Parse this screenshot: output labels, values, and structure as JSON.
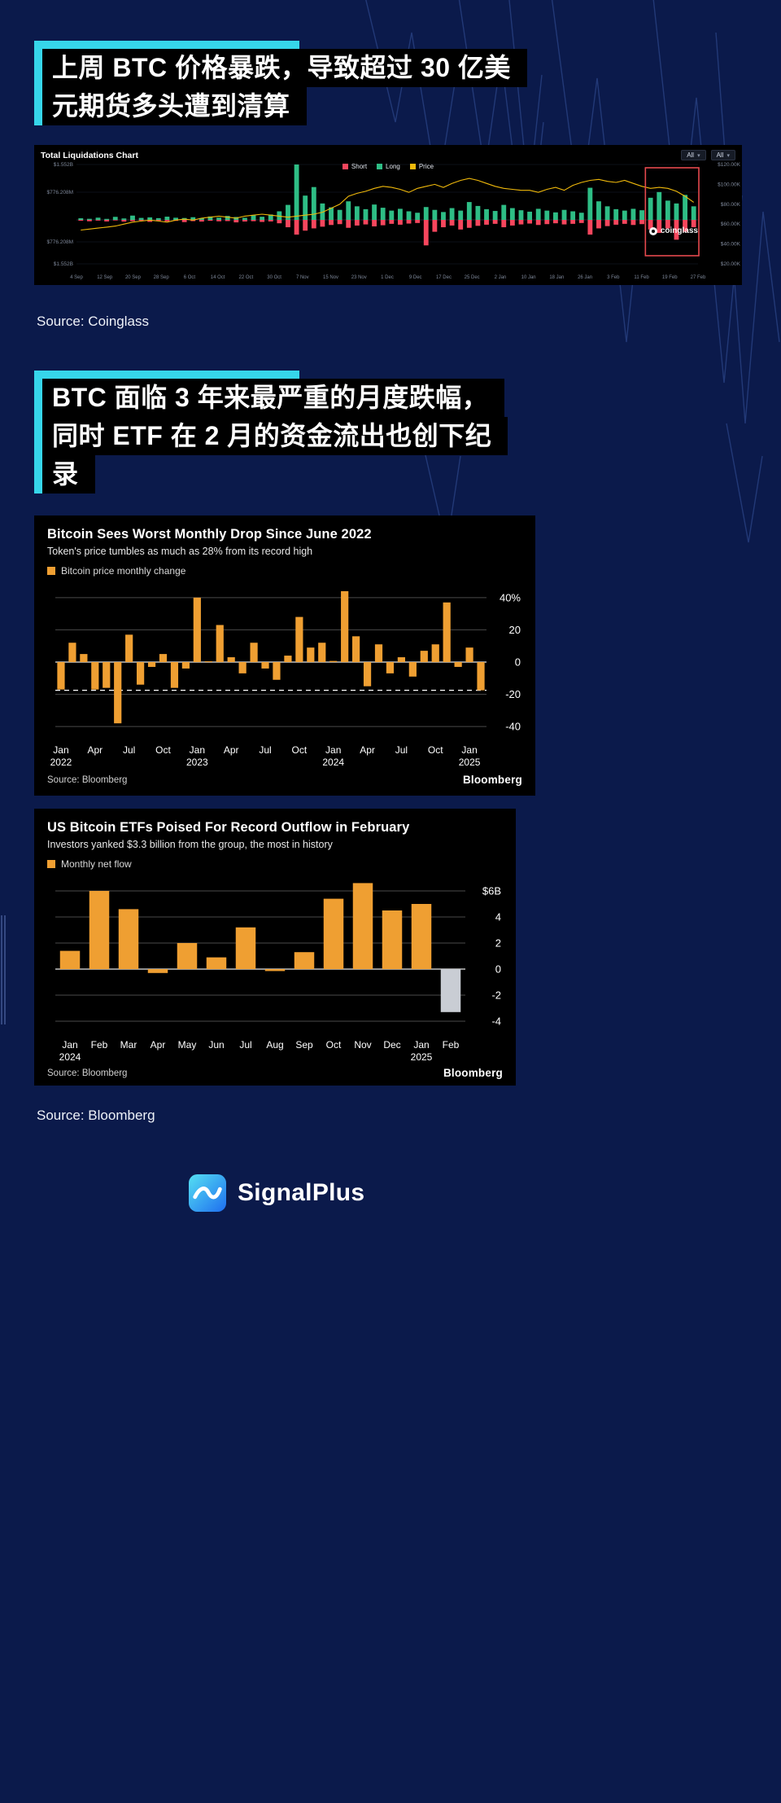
{
  "page": {
    "bg": "#0b1a4b",
    "accent": "#36d6ea",
    "pattern_color": "#4a6cc0"
  },
  "heading1": {
    "lines": [
      "上周 BTC 价格暴跌，导致超过 30 亿美",
      "元期货多头遭到清算"
    ]
  },
  "source_coinglass": "Source: Coinglass",
  "heading2": {
    "lines": [
      "BTC 面临 3 年来最严重的月度跌幅，",
      "同时 ETF 在 2 月的资金流出也创下纪",
      "录"
    ]
  },
  "source_bloomberg": "Source: Bloomberg",
  "footer": {
    "brand": "SignalPlus"
  },
  "chart_data": [
    {
      "type": "bar+line",
      "title": "Total Liquidations Chart",
      "controls": [
        "All",
        "All"
      ],
      "legend": [
        {
          "label": "Short",
          "color": "#f6465d"
        },
        {
          "label": "Long",
          "color": "#2ebd85"
        },
        {
          "label": "Price",
          "color": "#f0b90b"
        }
      ],
      "watermark": "coinglass",
      "y_left_labels": [
        "$1.552B",
        "$776.208M",
        "$776.208M",
        "$1.552B"
      ],
      "y_left_values": [
        1552,
        776,
        -776,
        -1552
      ],
      "y_right_labels": [
        "$120.00K",
        "$100.00K",
        "$80.00K",
        "$60.00K",
        "$40.00K",
        "$20.00K"
      ],
      "y_right_values": [
        120,
        100,
        80,
        60,
        40,
        20
      ],
      "price_range": [
        20,
        120
      ],
      "bar_range": [
        -1552,
        1552
      ],
      "x_ticks": [
        "4 Sep",
        "12 Sep",
        "20 Sep",
        "28 Sep",
        "6 Oct",
        "14 Oct",
        "22 Oct",
        "30 Oct",
        "7 Nov",
        "15 Nov",
        "23 Nov",
        "1 Dec",
        "9 Dec",
        "17 Dec",
        "25 Dec",
        "2 Jan",
        "10 Jan",
        "18 Jan",
        "26 Jan",
        "3 Feb",
        "11 Feb",
        "19 Feb",
        "27 Feb"
      ],
      "long_liquidations_musd": [
        45,
        30,
        62,
        28,
        85,
        40,
        120,
        55,
        70,
        48,
        90,
        60,
        52,
        75,
        48,
        95,
        62,
        110,
        80,
        58,
        130,
        88,
        150,
        240,
        420,
        1552,
        680,
        920,
        460,
        350,
        280,
        520,
        380,
        300,
        430,
        340,
        260,
        310,
        240,
        200,
        360,
        280,
        220,
        330,
        260,
        500,
        390,
        300,
        250,
        420,
        330,
        270,
        230,
        310,
        260,
        210,
        280,
        240,
        200,
        900,
        520,
        380,
        300,
        260,
        310,
        270,
        620,
        780,
        540,
        460,
        700,
        380
      ],
      "short_liquidations_musd": [
        30,
        48,
        25,
        55,
        20,
        60,
        45,
        28,
        70,
        38,
        52,
        35,
        78,
        44,
        60,
        32,
        50,
        42,
        88,
        58,
        46,
        72,
        55,
        120,
        260,
        520,
        380,
        300,
        240,
        180,
        150,
        280,
        200,
        160,
        230,
        190,
        140,
        170,
        130,
        110,
        900,
        420,
        260,
        200,
        340,
        280,
        210,
        170,
        140,
        260,
        200,
        160,
        130,
        180,
        150,
        120,
        160,
        140,
        110,
        520,
        300,
        220,
        170,
        140,
        180,
        150,
        340,
        460,
        300,
        700,
        420,
        260
      ],
      "price_kusd": [
        54,
        55,
        56,
        57,
        58,
        60,
        62,
        63,
        64,
        63,
        62,
        64,
        65,
        64,
        66,
        67,
        68,
        67,
        66,
        68,
        69,
        70,
        69,
        68,
        67,
        68,
        69,
        70,
        72,
        76,
        80,
        88,
        91,
        93,
        96,
        98,
        97,
        95,
        92,
        96,
        98,
        100,
        97,
        101,
        104,
        106,
        104,
        101,
        98,
        96,
        95,
        94,
        94,
        92,
        95,
        97,
        94,
        99,
        102,
        104,
        105,
        103,
        102,
        104,
        101,
        98,
        96,
        97,
        96,
        93,
        88,
        82
      ],
      "highlight_last_n": 6,
      "highlight_color": "#e5484d"
    },
    {
      "type": "bar",
      "title": "Bitcoin Sees Worst Monthly Drop Since June 2022",
      "subtitle": "Token's price tumbles as much as 28% from its record high",
      "legend_label": "Bitcoin price monthly change",
      "bar_color": "#ef9f32",
      "source": "Source: Bloomberg",
      "brand": "Bloomberg",
      "ylim": [
        -48,
        48
      ],
      "yticks": [
        {
          "v": 40,
          "label": "40%"
        },
        {
          "v": 20,
          "label": "20"
        },
        {
          "v": 0,
          "label": "0"
        },
        {
          "v": -20,
          "label": "-20"
        },
        {
          "v": -40,
          "label": "-40"
        }
      ],
      "dashed_line": -17.5,
      "categories": [
        "Jan 2022",
        "Feb",
        "Mar",
        "Apr",
        "May",
        "Jun",
        "Jul",
        "Aug",
        "Sep",
        "Oct",
        "Nov",
        "Dec",
        "Jan 2023",
        "Feb",
        "Mar",
        "Apr",
        "May",
        "Jun",
        "Jul",
        "Aug",
        "Sep",
        "Oct",
        "Nov",
        "Dec",
        "Jan 2024",
        "Feb",
        "Mar",
        "Apr",
        "May",
        "Jun",
        "Jul",
        "Aug",
        "Sep",
        "Oct",
        "Nov",
        "Dec",
        "Jan 2025",
        "Feb"
      ],
      "values": [
        -17,
        12,
        5,
        -17,
        -16,
        -38,
        17,
        -14,
        -3,
        5,
        -16,
        -4,
        40,
        0.5,
        23,
        3,
        -7,
        12,
        -4,
        -11,
        4,
        28,
        9,
        12,
        0.7,
        44,
        16,
        -15,
        11,
        -7,
        3,
        -9,
        7,
        11,
        37,
        -3,
        9,
        -17.5
      ],
      "x_tick_positions": [
        0,
        3,
        6,
        9,
        12,
        15,
        18,
        21,
        24,
        27,
        30,
        33,
        36
      ],
      "x_tick_labels": [
        [
          "Jan",
          "2022"
        ],
        [
          "Apr"
        ],
        [
          "Jul"
        ],
        [
          "Oct"
        ],
        [
          "Jan",
          "2023"
        ],
        [
          "Apr"
        ],
        [
          "Jul"
        ],
        [
          "Oct"
        ],
        [
          "Jan",
          "2024"
        ],
        [
          "Apr"
        ],
        [
          "Jul"
        ],
        [
          "Oct"
        ],
        [
          "Jan",
          "2025"
        ]
      ]
    },
    {
      "type": "bar",
      "title": "US Bitcoin ETFs Poised For Record Outflow in February",
      "subtitle": "Investors yanked $3.3 billion from the group, the most in history",
      "legend_label": "Monthly net flow",
      "bar_color": "#ef9f32",
      "negative_highlight_color": "#c9cdd4",
      "source": "Source: Bloomberg",
      "brand": "Bloomberg",
      "ylim": [
        -5,
        7
      ],
      "yticks": [
        {
          "v": 6,
          "label": "$6B"
        },
        {
          "v": 4,
          "label": "4"
        },
        {
          "v": 2,
          "label": "2"
        },
        {
          "v": 0,
          "label": "0"
        },
        {
          "v": -2,
          "label": "-2"
        },
        {
          "v": -4,
          "label": "-4"
        }
      ],
      "categories": [
        "Jan 2024",
        "Feb",
        "Mar",
        "Apr",
        "May",
        "Jun",
        "Jul",
        "Aug",
        "Sep",
        "Oct",
        "Nov",
        "Dec",
        "Jan 2025",
        "Feb"
      ],
      "values": [
        1.4,
        6,
        4.6,
        -0.3,
        2,
        0.9,
        3.2,
        -0.15,
        1.3,
        5.4,
        6.6,
        4.5,
        5,
        -3.3
      ],
      "gray_indices": [
        13
      ],
      "x_tick_positions": [
        0,
        1,
        2,
        3,
        4,
        5,
        6,
        7,
        8,
        9,
        10,
        11,
        12,
        13
      ],
      "x_tick_labels": [
        [
          "Jan",
          "2024"
        ],
        [
          "Feb"
        ],
        [
          "Mar"
        ],
        [
          "Apr"
        ],
        [
          "May"
        ],
        [
          "Jun"
        ],
        [
          "Jul"
        ],
        [
          "Aug"
        ],
        [
          "Sep"
        ],
        [
          "Oct"
        ],
        [
          "Nov"
        ],
        [
          "Dec"
        ],
        [
          "Jan",
          "2025"
        ],
        [
          "Feb"
        ]
      ]
    }
  ]
}
